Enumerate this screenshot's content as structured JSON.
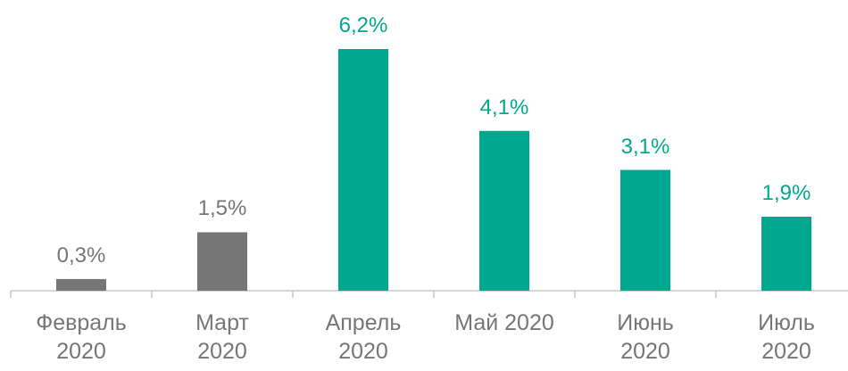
{
  "chart_data": {
    "type": "bar",
    "categories": [
      "Февраль 2020",
      "Март 2020",
      "Апрель 2020",
      "Май 2020",
      "Июнь 2020",
      "Июль 2020"
    ],
    "values": [
      0.3,
      1.5,
      6.2,
      4.1,
      3.1,
      1.9
    ],
    "value_labels": [
      "0,3%",
      "1,5%",
      "6,2%",
      "4,1%",
      "3,1%",
      "1,9%"
    ],
    "colors": [
      "#767676",
      "#767676",
      "#00a88f",
      "#00a88f",
      "#00a88f",
      "#00a88f"
    ]
  }
}
